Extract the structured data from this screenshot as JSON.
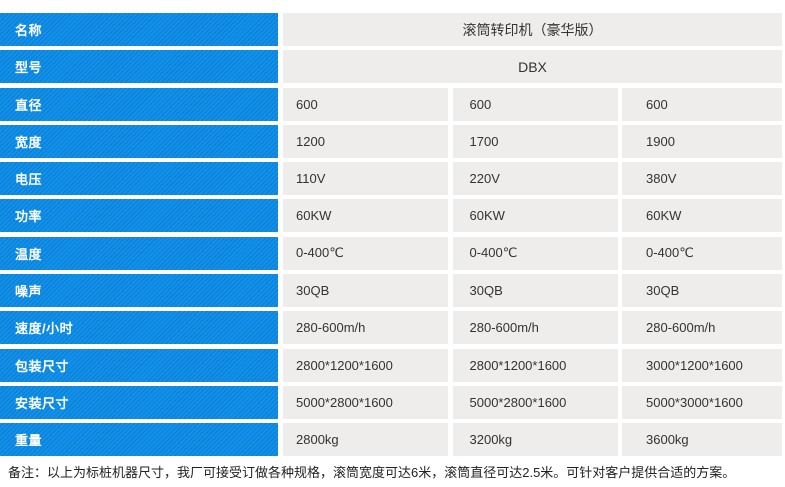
{
  "table": {
    "rows": [
      {
        "label": "名称",
        "value": "滚筒转印机（豪华版）"
      },
      {
        "label": "型号",
        "value": "DBX"
      },
      {
        "label": "直径",
        "cols": [
          "600",
          "600",
          "600"
        ]
      },
      {
        "label": "宽度",
        "cols": [
          "1200",
          "1700",
          "1900"
        ]
      },
      {
        "label": "电压",
        "cols": [
          "110V",
          "220V",
          "380V"
        ]
      },
      {
        "label": "功率",
        "cols": [
          "60KW",
          "60KW",
          "60KW"
        ]
      },
      {
        "label": "温度",
        "cols": [
          "0-400℃",
          "0-400℃",
          "0-400℃"
        ]
      },
      {
        "label": "噪声",
        "cols": [
          "30QB",
          "30QB",
          "30QB"
        ]
      },
      {
        "label": "速度/小时",
        "cols": [
          "280-600m/h",
          "280-600m/h",
          "280-600m/h"
        ]
      },
      {
        "label": "包装尺寸",
        "cols": [
          "2800*1200*1600",
          "2800*1200*1600",
          "3000*1200*1600"
        ]
      },
      {
        "label": "安装尺寸",
        "cols": [
          "5000*2800*1600",
          "5000*2800*1600",
          "5000*3000*1600"
        ]
      },
      {
        "label": "重量",
        "cols": [
          "2800kg",
          "3200kg",
          "3600kg"
        ]
      }
    ]
  },
  "note": "备注：以上为标桩机器尺寸，我厂可接受订做各种规格，滚筒宽度可达6米，滚筒直径可达2.5米。可针对客户提供合适的方案。",
  "colors": {
    "header_blue": "#1291ea",
    "header_blue_dark": "#0c7dd0",
    "cell_gray": "#eeedeb",
    "text_dark": "#333333"
  }
}
